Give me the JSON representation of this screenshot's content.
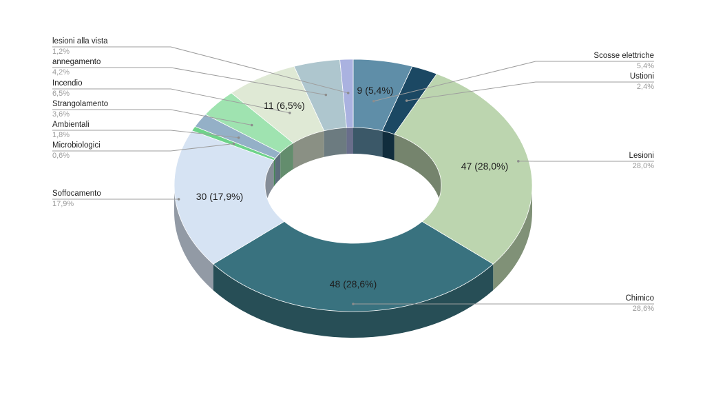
{
  "chart_data": {
    "type": "pie",
    "variant": "3d-donut",
    "legend_position": "callouts",
    "slices": [
      {
        "name": "Scosse elettriche",
        "value": 9,
        "pct_label": "5,4%",
        "inner_label": "9 (5,4%)",
        "color": "#5f8ea8"
      },
      {
        "name": "Ustioni",
        "value": 4,
        "pct_label": "2,4%",
        "inner_label": "",
        "color": "#1b4863"
      },
      {
        "name": "Lesioni",
        "value": 47,
        "pct_label": "28,0%",
        "inner_label": "47 (28,0%)",
        "color": "#bcd5af"
      },
      {
        "name": "Chimico",
        "value": 48,
        "pct_label": "28,6%",
        "inner_label": "48 (28,6%)",
        "color": "#39727f"
      },
      {
        "name": "Soffocamento",
        "value": 30,
        "pct_label": "17,9%",
        "inner_label": "30 (17,9%)",
        "color": "#d6e3f3"
      },
      {
        "name": "Microbiologici",
        "value": 1,
        "pct_label": "0,6%",
        "inner_label": "",
        "color": "#6ed38a"
      },
      {
        "name": "Ambientali",
        "value": 3,
        "pct_label": "1,8%",
        "inner_label": "",
        "color": "#94b0c7"
      },
      {
        "name": "Strangolamento",
        "value": 6,
        "pct_label": "3,6%",
        "inner_label": "",
        "color": "#9fe3b0"
      },
      {
        "name": "Incendio",
        "value": 11,
        "pct_label": "6,5%",
        "inner_label": "11 (6,5%)",
        "color": "#dfe9d5"
      },
      {
        "name": "annegamento",
        "value": 7,
        "pct_label": "4,2%",
        "inner_label": "",
        "color": "#aec6ce"
      },
      {
        "name": "lesioni alla vista",
        "value": 2,
        "pct_label": "1,2%",
        "inner_label": "",
        "color": "#aab2e0"
      }
    ]
  }
}
